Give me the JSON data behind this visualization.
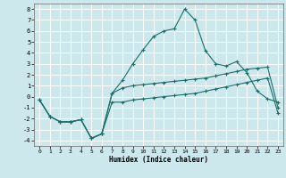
{
  "background_color": "#cce8ec",
  "grid_color": "#ffffff",
  "line_color": "#1a6e6a",
  "x_label": "Humidex (Indice chaleur)",
  "xlim": [
    -0.5,
    23.5
  ],
  "ylim": [
    -4.5,
    8.5
  ],
  "xticks": [
    0,
    1,
    2,
    3,
    4,
    5,
    6,
    7,
    8,
    9,
    10,
    11,
    12,
    13,
    14,
    15,
    16,
    17,
    18,
    19,
    20,
    21,
    22,
    23
  ],
  "yticks": [
    -4,
    -3,
    -2,
    -1,
    0,
    1,
    2,
    3,
    4,
    5,
    6,
    7,
    8
  ],
  "series_peak_x": [
    0,
    1,
    2,
    3,
    4,
    5,
    6,
    7,
    8,
    9,
    10,
    11,
    12,
    13,
    14,
    15,
    16,
    17,
    18,
    19,
    20,
    21,
    22,
    23
  ],
  "series_peak_y": [
    -0.3,
    -1.8,
    -2.3,
    -2.3,
    -2.1,
    -3.8,
    -3.4,
    0.3,
    1.5,
    3.0,
    4.3,
    5.5,
    6.0,
    6.2,
    8.0,
    7.0,
    4.2,
    3.0,
    2.8,
    3.2,
    2.2,
    0.5,
    -0.2,
    -0.5
  ],
  "series_avg_x": [
    0,
    1,
    2,
    3,
    4,
    5,
    6,
    7,
    8,
    9,
    10,
    11,
    12,
    13,
    14,
    15,
    16,
    17,
    18,
    19,
    20,
    21,
    22,
    23
  ],
  "series_avg_y": [
    -0.3,
    -1.8,
    -2.3,
    -2.3,
    -2.1,
    -3.8,
    -3.4,
    0.3,
    0.8,
    1.0,
    1.1,
    1.2,
    1.3,
    1.4,
    1.5,
    1.6,
    1.7,
    1.9,
    2.1,
    2.3,
    2.5,
    2.6,
    2.7,
    -1.0
  ],
  "series_low_x": [
    0,
    1,
    2,
    3,
    4,
    5,
    6,
    7,
    8,
    9,
    10,
    11,
    12,
    13,
    14,
    15,
    16,
    17,
    18,
    19,
    20,
    21,
    22,
    23
  ],
  "series_low_y": [
    -0.3,
    -1.8,
    -2.3,
    -2.3,
    -2.1,
    -3.8,
    -3.4,
    -0.5,
    -0.5,
    -0.3,
    -0.2,
    -0.1,
    0.0,
    0.1,
    0.2,
    0.3,
    0.5,
    0.7,
    0.9,
    1.1,
    1.3,
    1.5,
    1.7,
    -1.5
  ]
}
